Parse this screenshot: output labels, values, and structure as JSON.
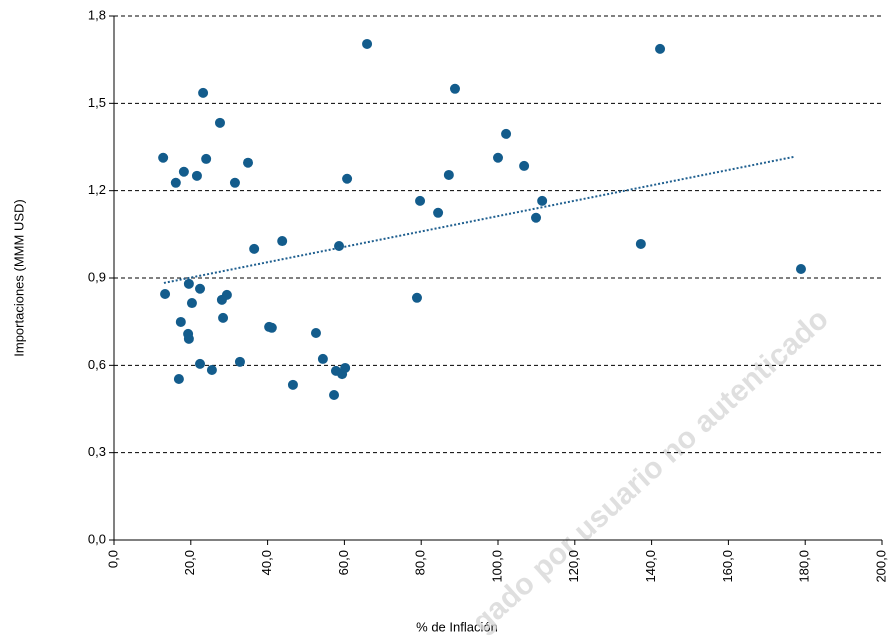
{
  "chart_data": {
    "type": "scatter",
    "x_label": "% de Inflación",
    "y_label": "Importaciones (MMM USD)",
    "watermark": "gado por usuario no autenticado",
    "xlim": [
      0,
      200
    ],
    "ylim": [
      0,
      1.8
    ],
    "xticks": [
      {
        "value": 0,
        "label": "0,0"
      },
      {
        "value": 20,
        "label": "20,0"
      },
      {
        "value": 40,
        "label": "40,0"
      },
      {
        "value": 60,
        "label": "60,0"
      },
      {
        "value": 80,
        "label": "80,0"
      },
      {
        "value": 100,
        "label": "100,0"
      },
      {
        "value": 120,
        "label": "120,0"
      },
      {
        "value": 140,
        "label": "140,0"
      },
      {
        "value": 160,
        "label": "160,0"
      },
      {
        "value": 180,
        "label": "180,0"
      },
      {
        "value": 200,
        "label": "200,0"
      }
    ],
    "yticks": [
      {
        "value": 0,
        "label": "0,0"
      },
      {
        "value": 0.3,
        "label": "0,3"
      },
      {
        "value": 0.6,
        "label": "0,6"
      },
      {
        "value": 0.9,
        "label": "0,9"
      },
      {
        "value": 1.2,
        "label": "1,2"
      },
      {
        "value": 1.5,
        "label": "1,5"
      },
      {
        "value": 1.8,
        "label": "1,8"
      }
    ],
    "grid": true,
    "color": "#135c8c",
    "x": [
      12.8,
      13.3,
      16.1,
      18.2,
      17.4,
      16.9,
      19.3,
      19.5,
      19.5,
      20.3,
      21.6,
      22.4,
      22.4,
      23.2,
      24.0,
      25.5,
      27.6,
      28.4,
      28.1,
      29.4,
      31.5,
      32.8,
      34.9,
      36.5,
      40.4,
      41.1,
      43.8,
      46.6,
      52.6,
      54.4,
      57.3,
      57.8,
      58.6,
      59.4,
      60.2,
      60.7,
      65.9,
      78.9,
      79.7,
      84.4,
      87.2,
      88.8,
      100.0,
      102.1,
      106.8,
      109.9,
      111.5,
      137.2,
      142.2,
      178.9
    ],
    "values": [
      1.313,
      0.845,
      1.227,
      1.265,
      0.749,
      0.553,
      0.708,
      0.691,
      0.88,
      0.814,
      1.251,
      0.863,
      0.605,
      1.536,
      1.309,
      0.584,
      1.433,
      0.763,
      0.825,
      0.842,
      1.227,
      0.612,
      1.296,
      1.0,
      0.732,
      0.729,
      1.027,
      0.533,
      0.711,
      0.622,
      0.498,
      0.581,
      1.01,
      0.57,
      0.591,
      1.241,
      1.704,
      0.832,
      1.165,
      1.124,
      1.254,
      1.55,
      1.313,
      1.395,
      1.285,
      1.107,
      1.165,
      1.017,
      1.687,
      0.931
    ],
    "trendline": {
      "x": [
        13,
        177
      ],
      "values": [
        0.883,
        1.316
      ],
      "color": "#1f5f8f"
    }
  }
}
